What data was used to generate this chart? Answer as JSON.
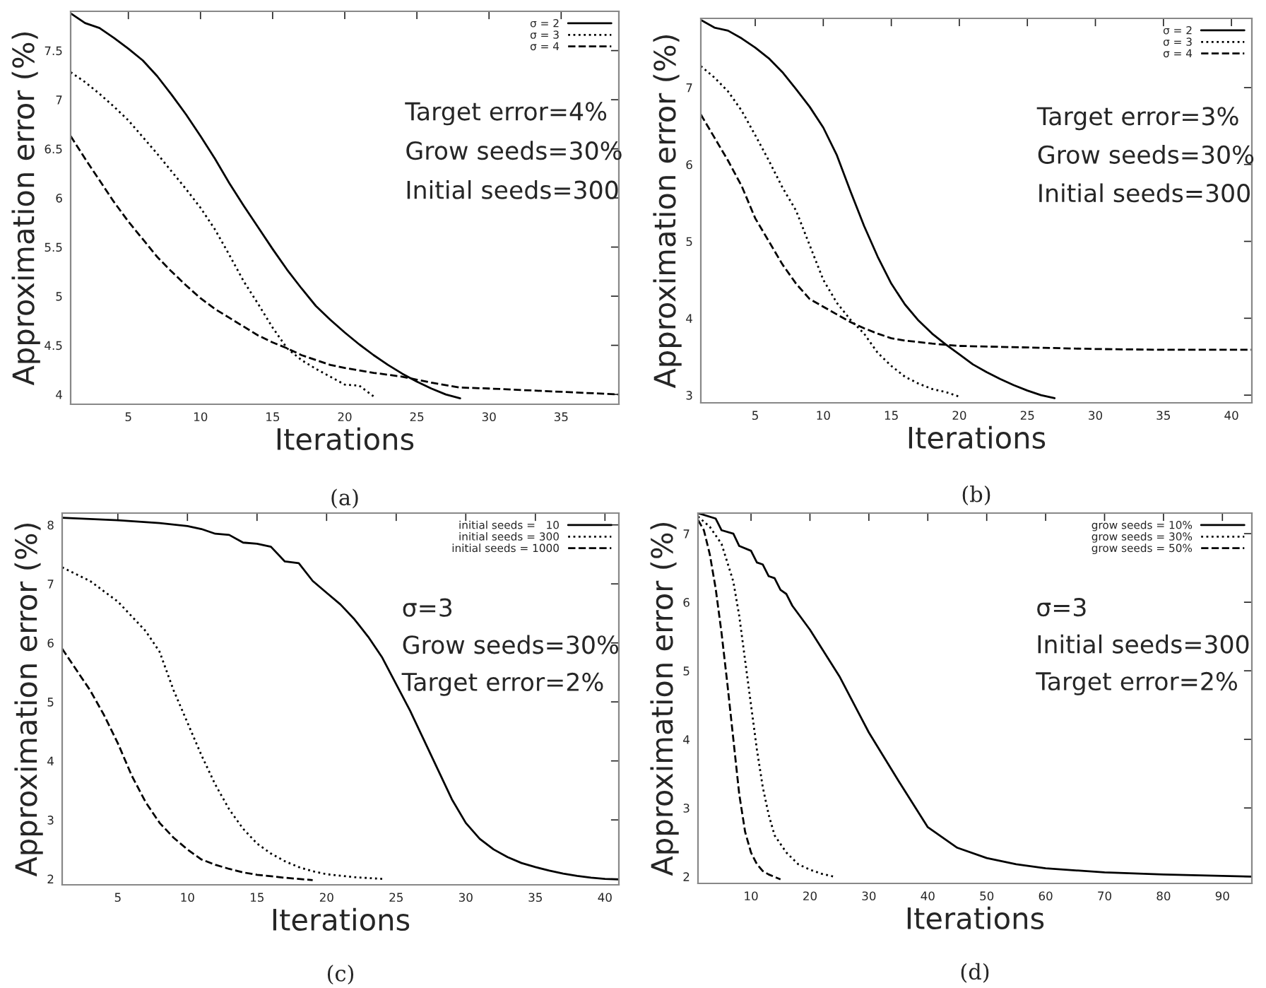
{
  "chart_data": [
    {
      "type": "line",
      "xlabel": "Iterations",
      "ylabel": "Approximation error (%)",
      "xlim": [
        1,
        39
      ],
      "ylim": [
        3.9,
        7.9
      ],
      "xticks": [
        5,
        10,
        15,
        20,
        25,
        30,
        35
      ],
      "yticks": [
        4,
        4.5,
        5,
        5.5,
        6,
        6.5,
        7,
        7.5
      ],
      "legend": "top right",
      "grid": false,
      "annotations": [
        "Target error=4%",
        "Grow seeds=30%",
        "Initial seeds=300",
        "(a)"
      ],
      "series": [
        {
          "name": "σ = 2",
          "color": "#000000",
          "line_style": "solid",
          "x": [
            1,
            2,
            3,
            4,
            5,
            6,
            7,
            8,
            9,
            10,
            11,
            12,
            13,
            14,
            15,
            16,
            17,
            18,
            19,
            20,
            21,
            22,
            23,
            24,
            25,
            26,
            27,
            28
          ],
          "values": [
            7.88,
            7.78,
            7.73,
            7.63,
            7.52,
            7.4,
            7.24,
            7.05,
            6.85,
            6.63,
            6.4,
            6.15,
            5.92,
            5.7,
            5.48,
            5.27,
            5.08,
            4.9,
            4.76,
            4.63,
            4.51,
            4.4,
            4.3,
            4.21,
            4.13,
            4.06,
            4.0,
            3.96
          ]
        },
        {
          "name": "σ = 3",
          "color": "#000000",
          "line_style": "dotted",
          "x": [
            1,
            2,
            3,
            4,
            5,
            6,
            7,
            8,
            9,
            10,
            11,
            12,
            13,
            14,
            15,
            16,
            17,
            18,
            19,
            20,
            21,
            22
          ],
          "values": [
            7.28,
            7.18,
            7.06,
            6.93,
            6.79,
            6.62,
            6.45,
            6.27,
            6.09,
            5.9,
            5.68,
            5.42,
            5.15,
            4.92,
            4.68,
            4.47,
            4.35,
            4.26,
            4.18,
            4.1,
            4.09,
            3.98
          ]
        },
        {
          "name": "σ = 4",
          "color": "#000000",
          "line_style": "dashed",
          "x": [
            1,
            2,
            3,
            4,
            5,
            6,
            7,
            8,
            9,
            10,
            11,
            12,
            13,
            14,
            15,
            16,
            17,
            18,
            19,
            20,
            22,
            24,
            26,
            28,
            30,
            33,
            36,
            39
          ],
          "values": [
            6.63,
            6.4,
            6.18,
            5.96,
            5.76,
            5.58,
            5.4,
            5.25,
            5.11,
            4.98,
            4.87,
            4.78,
            4.69,
            4.6,
            4.53,
            4.47,
            4.4,
            4.35,
            4.3,
            4.27,
            4.22,
            4.18,
            4.12,
            4.07,
            4.06,
            4.04,
            4.02,
            4.0
          ]
        }
      ]
    },
    {
      "type": "line",
      "xlabel": "Iterations",
      "ylabel": "Approximation error (%)",
      "xlim": [
        1,
        41.5
      ],
      "ylim": [
        2.9,
        7.9
      ],
      "xticks": [
        5,
        10,
        15,
        20,
        25,
        30,
        35,
        40
      ],
      "yticks": [
        3,
        4,
        5,
        6,
        7
      ],
      "legend": "top right",
      "grid": false,
      "annotations": [
        "Target error=3%",
        "Grow seeds=30%",
        "Initial seeds=300",
        "(b)"
      ],
      "series": [
        {
          "name": "σ = 2",
          "color": "#000000",
          "line_style": "solid",
          "x": [
            1,
            2,
            3,
            4,
            5,
            6,
            7,
            8,
            9,
            10,
            11,
            12,
            13,
            14,
            15,
            16,
            17,
            18,
            19,
            20,
            21,
            22,
            23,
            24,
            25,
            26,
            27
          ],
          "values": [
            7.88,
            7.78,
            7.74,
            7.64,
            7.52,
            7.38,
            7.2,
            6.98,
            6.75,
            6.48,
            6.12,
            5.65,
            5.2,
            4.8,
            4.45,
            4.18,
            3.97,
            3.8,
            3.66,
            3.53,
            3.4,
            3.3,
            3.21,
            3.13,
            3.06,
            3.0,
            2.96
          ]
        },
        {
          "name": "σ = 3",
          "color": "#000000",
          "line_style": "dotted",
          "x": [
            1,
            2,
            3,
            4,
            5,
            6,
            7,
            8,
            9,
            10,
            11,
            12,
            13,
            14,
            15,
            16,
            17,
            18,
            19,
            20
          ],
          "values": [
            7.28,
            7.13,
            6.95,
            6.7,
            6.38,
            6.05,
            5.7,
            5.4,
            4.95,
            4.5,
            4.2,
            3.98,
            3.8,
            3.55,
            3.38,
            3.24,
            3.15,
            3.08,
            3.04,
            2.98
          ]
        },
        {
          "name": "σ = 4",
          "color": "#000000",
          "line_style": "dashed",
          "x": [
            1,
            2,
            3,
            4,
            5,
            6,
            7,
            8,
            9,
            10,
            11,
            12,
            13,
            14,
            15,
            16,
            18,
            20,
            25,
            30,
            35,
            41.5
          ],
          "values": [
            6.65,
            6.35,
            6.05,
            5.72,
            5.3,
            5.0,
            4.7,
            4.45,
            4.25,
            4.15,
            4.05,
            3.95,
            3.87,
            3.8,
            3.74,
            3.71,
            3.67,
            3.64,
            3.62,
            3.6,
            3.59,
            3.59
          ]
        }
      ]
    },
    {
      "type": "line",
      "xlabel": "Iterations",
      "ylabel": "Approximation error (%)",
      "xlim": [
        1,
        41
      ],
      "ylim": [
        1.9,
        8.2
      ],
      "xticks": [
        5,
        10,
        15,
        20,
        25,
        30,
        35,
        40
      ],
      "yticks": [
        2,
        3,
        4,
        5,
        6,
        7,
        8
      ],
      "legend": "top right",
      "grid": false,
      "annotations": [
        "σ=3",
        "Grow seeds=30%",
        "Target error=2%",
        "(c)"
      ],
      "series": [
        {
          "name": "initial seeds =   10",
          "color": "#000000",
          "line_style": "solid",
          "x": [
            1,
            5,
            8,
            10,
            11,
            12,
            13,
            14,
            15,
            16,
            17,
            18,
            19,
            20,
            21,
            22,
            23,
            24,
            25,
            26,
            27,
            28,
            29,
            30,
            31,
            32,
            33,
            34,
            35,
            36,
            37,
            38,
            39,
            40,
            41
          ],
          "values": [
            8.12,
            8.08,
            8.03,
            7.98,
            7.93,
            7.85,
            7.83,
            7.7,
            7.68,
            7.63,
            7.38,
            7.35,
            7.05,
            6.85,
            6.65,
            6.4,
            6.1,
            5.75,
            5.3,
            4.85,
            4.35,
            3.85,
            3.35,
            2.95,
            2.68,
            2.5,
            2.37,
            2.27,
            2.2,
            2.14,
            2.09,
            2.05,
            2.02,
            2.0,
            1.99
          ]
        },
        {
          "name": "initial seeds = 300",
          "color": "#000000",
          "line_style": "dotted",
          "x": [
            1,
            3,
            5,
            7,
            8,
            9,
            10,
            11,
            12,
            13,
            14,
            15,
            16,
            17,
            18,
            19,
            20,
            22,
            24
          ],
          "values": [
            7.28,
            7.05,
            6.7,
            6.2,
            5.85,
            5.2,
            4.65,
            4.1,
            3.6,
            3.18,
            2.85,
            2.6,
            2.43,
            2.3,
            2.2,
            2.13,
            2.08,
            2.03,
            2.0
          ]
        },
        {
          "name": "initial seeds = 1000",
          "color": "#000000",
          "line_style": "dashed",
          "x": [
            1,
            2,
            3,
            4,
            5,
            6,
            7,
            8,
            9,
            10,
            11,
            12,
            13,
            14,
            15,
            17,
            19
          ],
          "values": [
            5.9,
            5.55,
            5.2,
            4.78,
            4.3,
            3.75,
            3.3,
            2.95,
            2.7,
            2.5,
            2.33,
            2.24,
            2.17,
            2.11,
            2.07,
            2.02,
            1.98
          ]
        }
      ]
    },
    {
      "type": "line",
      "xlabel": "Iterations",
      "ylabel": "Approximation error (%)",
      "xlim": [
        1,
        95
      ],
      "ylim": [
        1.9,
        7.3
      ],
      "xticks": [
        10,
        20,
        30,
        40,
        50,
        60,
        70,
        80,
        90
      ],
      "yticks": [
        2,
        3,
        4,
        5,
        6,
        7
      ],
      "legend": "top right",
      "grid": false,
      "annotations": [
        "σ=3",
        "Initial seeds=300",
        "Target error=2%",
        "(d)"
      ],
      "series": [
        {
          "name": "grow seeds = 10%",
          "color": "#000000",
          "line_style": "solid",
          "x": [
            1,
            4,
            5,
            7,
            8,
            10,
            11,
            12,
            13,
            14,
            15,
            16,
            17,
            20,
            25,
            30,
            35,
            40,
            45,
            50,
            55,
            60,
            70,
            80,
            95
          ],
          "values": [
            7.3,
            7.22,
            7.05,
            7.0,
            6.82,
            6.75,
            6.58,
            6.55,
            6.38,
            6.35,
            6.18,
            6.12,
            5.95,
            5.6,
            4.92,
            4.1,
            3.4,
            2.72,
            2.42,
            2.27,
            2.18,
            2.12,
            2.06,
            2.03,
            2.0
          ]
        },
        {
          "name": "grow seeds = 30%",
          "color": "#000000",
          "line_style": "dotted",
          "x": [
            1,
            3,
            5,
            7,
            8,
            9,
            10,
            11,
            12,
            13,
            14,
            16,
            18,
            20,
            22,
            24
          ],
          "values": [
            7.25,
            7.1,
            6.85,
            6.3,
            5.8,
            5.15,
            4.5,
            3.85,
            3.3,
            2.9,
            2.6,
            2.35,
            2.18,
            2.1,
            2.04,
            2.0
          ]
        },
        {
          "name": "grow seeds = 50%",
          "color": "#000000",
          "line_style": "dashed",
          "x": [
            1,
            2,
            3,
            4,
            5,
            6,
            7,
            8,
            9,
            10,
            11,
            12,
            13,
            15
          ],
          "values": [
            7.2,
            7.05,
            6.7,
            6.2,
            5.55,
            4.8,
            4.0,
            3.2,
            2.65,
            2.35,
            2.18,
            2.08,
            2.03,
            1.96
          ]
        }
      ]
    }
  ]
}
